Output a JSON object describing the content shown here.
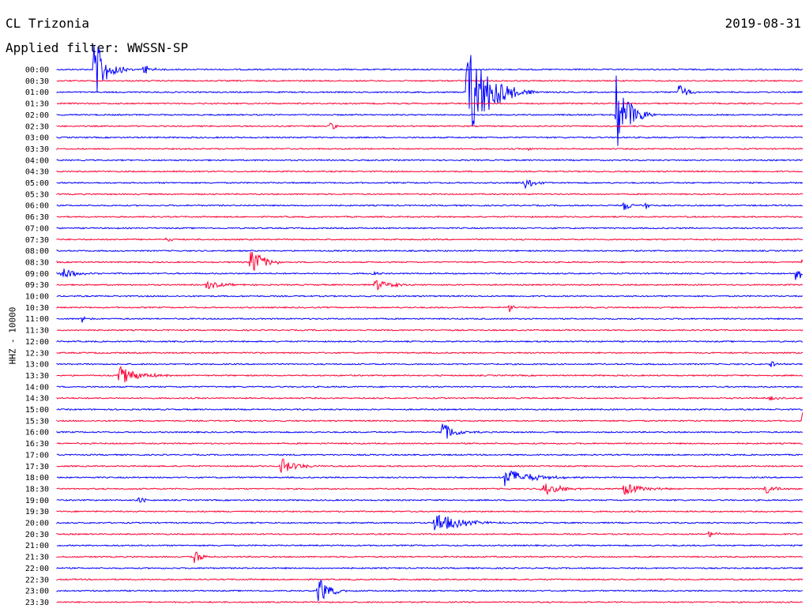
{
  "header": {
    "station": "CL Trizonia",
    "date": "2019-08-31",
    "filter": "Applied filter: WWSSN-SP"
  },
  "chart_data": {
    "type": "line",
    "title": "CL Trizonia",
    "date": "2019-08-31",
    "subtitle": "Applied filter: WWSSN-SP",
    "ylabel": "HHZ - 10000",
    "row_labels": [
      "00:00",
      "00:30",
      "01:00",
      "01:30",
      "02:00",
      "02:30",
      "03:00",
      "03:30",
      "04:00",
      "04:30",
      "05:00",
      "05:30",
      "06:00",
      "06:30",
      "07:00",
      "07:30",
      "08:00",
      "08:30",
      "09:00",
      "09:30",
      "10:00",
      "10:30",
      "11:00",
      "11:30",
      "12:00",
      "12:30",
      "13:00",
      "13:30",
      "14:00",
      "14:30",
      "15:00",
      "15:30",
      "16:00",
      "16:30",
      "17:00",
      "17:30",
      "18:00",
      "18:30",
      "19:00",
      "19:30",
      "20:00",
      "20:30",
      "21:00",
      "21:30",
      "22:00",
      "22:30",
      "23:00",
      "23:30"
    ],
    "row_colors": [
      "#0000ff",
      "#ff0033"
    ],
    "minutes_per_row": 30,
    "events": [
      {
        "row": "00:00",
        "minute": 1.5,
        "amplitude": 3.0,
        "duration": 1.0
      },
      {
        "row": "00:00",
        "minute": 3.5,
        "amplitude": 0.6,
        "duration": 0.6
      },
      {
        "row": "01:00",
        "minute": 16.5,
        "amplitude": 5.0,
        "duration": 1.8
      },
      {
        "row": "01:00",
        "minute": 25.0,
        "amplitude": 0.9,
        "duration": 0.7
      },
      {
        "row": "02:00",
        "minute": 22.5,
        "amplitude": 4.0,
        "duration": 1.0
      },
      {
        "row": "02:30",
        "minute": 11.0,
        "amplitude": 0.4,
        "duration": 0.5
      },
      {
        "row": "03:30",
        "minute": 19.0,
        "amplitude": 0.3,
        "duration": 0.2
      },
      {
        "row": "05:00",
        "minute": 18.8,
        "amplitude": 0.6,
        "duration": 0.8
      },
      {
        "row": "06:00",
        "minute": 22.8,
        "amplitude": 0.6,
        "duration": 0.6
      },
      {
        "row": "06:00",
        "minute": 23.7,
        "amplitude": 0.5,
        "duration": 0.2
      },
      {
        "row": "07:30",
        "minute": 4.4,
        "amplitude": 0.25,
        "duration": 0.4
      },
      {
        "row": "08:30",
        "minute": 7.8,
        "amplitude": 1.5,
        "duration": 1.0
      },
      {
        "row": "08:30",
        "minute": 30.0,
        "amplitude": 0.4,
        "duration": 0.4
      },
      {
        "row": "09:00",
        "minute": 0.2,
        "amplitude": 0.6,
        "duration": 1.0
      },
      {
        "row": "09:00",
        "minute": 12.7,
        "amplitude": 0.4,
        "duration": 0.3
      },
      {
        "row": "09:00",
        "minute": 29.7,
        "amplitude": 0.7,
        "duration": 1.0
      },
      {
        "row": "09:30",
        "minute": 6.0,
        "amplitude": 0.4,
        "duration": 1.3
      },
      {
        "row": "09:30",
        "minute": 12.8,
        "amplitude": 0.5,
        "duration": 1.3
      },
      {
        "row": "10:30",
        "minute": 18.2,
        "amplitude": 0.6,
        "duration": 0.3
      },
      {
        "row": "11:00",
        "minute": 1.0,
        "amplitude": 0.4,
        "duration": 0.4
      },
      {
        "row": "12:30",
        "minute": 8.2,
        "amplitude": 0.2,
        "duration": 0.2
      },
      {
        "row": "13:00",
        "minute": 28.7,
        "amplitude": 0.4,
        "duration": 0.5
      },
      {
        "row": "13:30",
        "minute": 2.5,
        "amplitude": 1.0,
        "duration": 1.5
      },
      {
        "row": "14:30",
        "minute": 28.7,
        "amplitude": 0.3,
        "duration": 0.4
      },
      {
        "row": "15:30",
        "minute": 30.0,
        "amplitude": 0.8,
        "duration": 0.9
      },
      {
        "row": "16:00",
        "minute": 15.5,
        "amplitude": 1.0,
        "duration": 1.0
      },
      {
        "row": "17:30",
        "minute": 9.0,
        "amplitude": 0.8,
        "duration": 1.2
      },
      {
        "row": "18:00",
        "minute": 18.0,
        "amplitude": 0.9,
        "duration": 2.0
      },
      {
        "row": "18:30",
        "minute": 19.5,
        "amplitude": 0.7,
        "duration": 1.4
      },
      {
        "row": "18:30",
        "minute": 22.8,
        "amplitude": 0.6,
        "duration": 1.5
      },
      {
        "row": "18:30",
        "minute": 28.5,
        "amplitude": 0.6,
        "duration": 0.8
      },
      {
        "row": "19:00",
        "minute": 3.3,
        "amplitude": 0.4,
        "duration": 0.4
      },
      {
        "row": "20:00",
        "minute": 15.2,
        "amplitude": 1.0,
        "duration": 2.0
      },
      {
        "row": "20:30",
        "minute": 26.2,
        "amplitude": 0.3,
        "duration": 1.0
      },
      {
        "row": "21:30",
        "minute": 5.5,
        "amplitude": 0.7,
        "duration": 0.7
      },
      {
        "row": "23:00",
        "minute": 10.5,
        "amplitude": 1.4,
        "duration": 0.9
      }
    ]
  }
}
